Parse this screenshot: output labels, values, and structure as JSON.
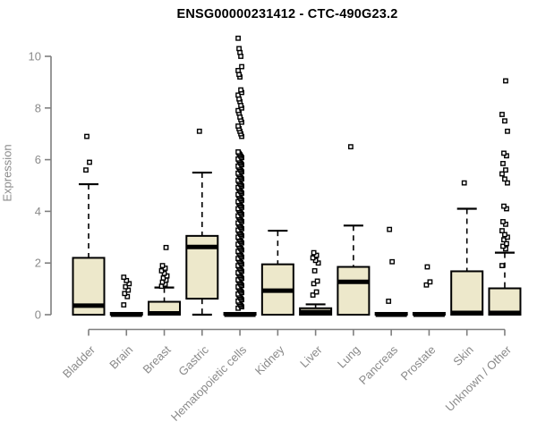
{
  "chart_data": {
    "type": "boxplot",
    "title": "ENSG00000231412 - CTC-490G23.2",
    "ylabel": "Expression",
    "xlabel": "",
    "ylim": [
      0,
      10
    ],
    "yticks": [
      0,
      2,
      4,
      6,
      8,
      10
    ],
    "grid": false,
    "legend": "none",
    "colors": {
      "box_fill": "#EDE8CB",
      "box_line": "#000000",
      "axis_line": "#7f7f7f",
      "tick_label": "#8a8a8a",
      "title": "#000000"
    },
    "categories": [
      {
        "label": "Bladder",
        "q1": 0,
        "median": 0.35,
        "q3": 2.2,
        "whisker_low": 0,
        "whisker_high": 5.05,
        "outliers": [
          5.6,
          5.9,
          6.9
        ]
      },
      {
        "label": "Brain",
        "q1": 0,
        "median": 0,
        "q3": 0.07,
        "whisker_low": 0,
        "whisker_high": 0.07,
        "outliers": [
          0.38,
          0.7,
          0.82,
          0.95,
          1.08,
          1.2,
          1.32,
          1.45
        ]
      },
      {
        "label": "Breast",
        "q1": 0,
        "median": 0.05,
        "q3": 0.5,
        "whisker_low": 0,
        "whisker_high": 1.05,
        "outliers": [
          1.1,
          1.18,
          1.26,
          1.34,
          1.42,
          1.5,
          1.6,
          1.7,
          1.8,
          1.9,
          2.6
        ]
      },
      {
        "label": "Gastric",
        "q1": 0.62,
        "median": 2.62,
        "q3": 3.05,
        "whisker_low": 0,
        "whisker_high": 5.5,
        "outliers": [
          7.1
        ]
      },
      {
        "label": "Hematopoietic cells",
        "q1": 0,
        "median": 0,
        "q3": 0.07,
        "whisker_low": 0,
        "whisker_high": 0.07,
        "outliers_dense": {
          "from": 0.25,
          "to": 6.35,
          "step": 0.055
        },
        "outliers": [
          6.9,
          7.0,
          7.1,
          7.2,
          7.3,
          7.45,
          7.55,
          7.65,
          7.8,
          7.9,
          8.0,
          8.1,
          8.25,
          8.35,
          8.5,
          8.6,
          8.7,
          9.2,
          9.3,
          9.45,
          9.6,
          10.0,
          10.15,
          10.3,
          10.7
        ]
      },
      {
        "label": "Kidney",
        "q1": 0,
        "median": 0.93,
        "q3": 1.95,
        "whisker_low": 0,
        "whisker_high": 3.25,
        "outliers": []
      },
      {
        "label": "Liver",
        "q1": 0,
        "median": 0.1,
        "q3": 0.25,
        "whisker_low": 0,
        "whisker_high": 0.4,
        "outliers": [
          0.76,
          0.88,
          1.2,
          1.3,
          1.7,
          2.0,
          2.1,
          2.2,
          2.3,
          2.4
        ]
      },
      {
        "label": "Lung",
        "q1": 0,
        "median": 1.27,
        "q3": 1.85,
        "whisker_low": 0,
        "whisker_high": 3.45,
        "outliers": [
          6.5
        ]
      },
      {
        "label": "Pancreas",
        "q1": 0,
        "median": 0,
        "q3": 0.07,
        "whisker_low": 0,
        "whisker_high": 0.07,
        "outliers": [
          0.52,
          2.05,
          3.3
        ]
      },
      {
        "label": "Prostate",
        "q1": 0,
        "median": 0,
        "q3": 0.07,
        "whisker_low": 0,
        "whisker_high": 0.07,
        "outliers": [
          1.15,
          1.27,
          1.85
        ]
      },
      {
        "label": "Skin",
        "q1": 0,
        "median": 0.07,
        "q3": 1.68,
        "whisker_low": 0,
        "whisker_high": 4.1,
        "outliers": [
          5.1
        ]
      },
      {
        "label": "Unknown / Other",
        "q1": 0,
        "median": 0.07,
        "q3": 1.02,
        "whisker_low": 0,
        "whisker_high": 2.4,
        "outliers": [
          1.9,
          2.55,
          2.65,
          2.75,
          2.9,
          3.0,
          3.1,
          3.25,
          3.5,
          3.6,
          4.1,
          4.2,
          5.1,
          5.25,
          5.45,
          5.6,
          5.85,
          6.15,
          6.25,
          7.1,
          7.5,
          7.75,
          9.05
        ]
      }
    ]
  }
}
